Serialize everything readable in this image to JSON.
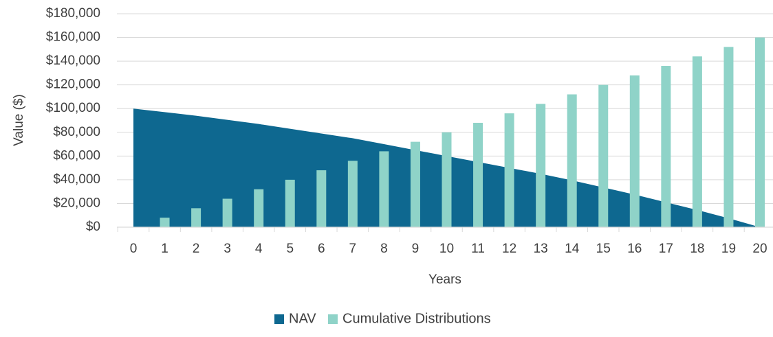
{
  "chart_data": {
    "type": "area",
    "xlabel": "Years",
    "ylabel": "Value ($)",
    "x": [
      0,
      1,
      2,
      3,
      4,
      5,
      6,
      7,
      8,
      9,
      10,
      11,
      12,
      13,
      14,
      15,
      16,
      17,
      18,
      19,
      20
    ],
    "ylim": [
      0,
      180000
    ],
    "y_ticks": [
      0,
      20000,
      40000,
      60000,
      80000,
      100000,
      120000,
      140000,
      160000,
      180000
    ],
    "y_tick_labels": [
      "$0",
      "$20,000",
      "$40,000",
      "$60,000",
      "$80,000",
      "$100,000",
      "$120,000",
      "$140,000",
      "$160,000",
      "$180,000"
    ],
    "grid": true,
    "legend_position": "bottom",
    "series": [
      {
        "name": "NAV",
        "type": "area",
        "color": "#0e6890",
        "values": [
          100000,
          97000,
          94000,
          90500,
          87000,
          83000,
          79000,
          75000,
          70000,
          65000,
          60000,
          55000,
          50000,
          45000,
          39500,
          33500,
          27500,
          21000,
          14500,
          7500,
          0
        ]
      },
      {
        "name": "Cumulative Distributions",
        "type": "bar",
        "color": "#8fd3c8",
        "values": [
          0,
          8000,
          16000,
          24000,
          32000,
          40000,
          48000,
          56000,
          64000,
          72000,
          80000,
          88000,
          96000,
          104000,
          112000,
          120000,
          128000,
          136000,
          144000,
          152000,
          160000
        ]
      }
    ]
  }
}
